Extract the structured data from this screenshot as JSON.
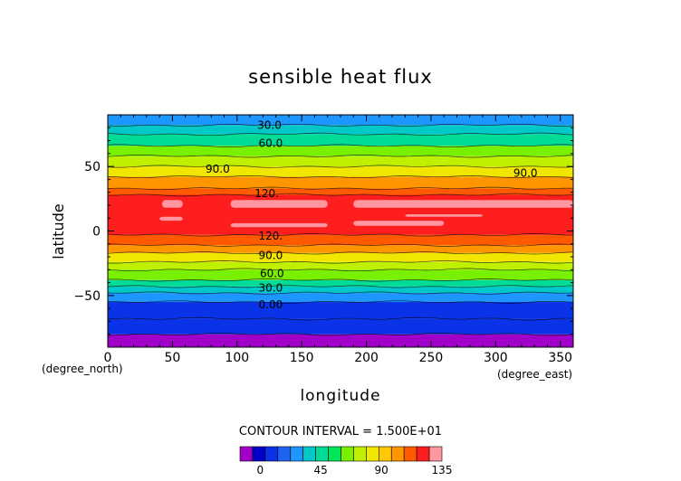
{
  "chart_data": {
    "type": "heatmap",
    "title": "sensible heat flux",
    "xlabel": "longitude",
    "ylabel": "latitude",
    "x_unit": "(degree_east)",
    "y_unit": "(degree_north)",
    "xlim": [
      0,
      360
    ],
    "ylim": [
      -90,
      90
    ],
    "x_ticks": [
      0,
      50,
      100,
      150,
      200,
      250,
      300,
      350
    ],
    "y_ticks": [
      -50,
      0,
      50
    ],
    "contour_interval_text": "CONTOUR INTERVAL = 1.500E+01",
    "contour_labels": [
      {
        "text": "30.0",
        "lon": 125,
        "lat": 82
      },
      {
        "text": "60.0",
        "lon": 126,
        "lat": 68
      },
      {
        "text": "90.0",
        "lon": 85,
        "lat": 48
      },
      {
        "text": "90.0",
        "lon": 323,
        "lat": 45
      },
      {
        "text": "120.",
        "lon": 123,
        "lat": 29
      },
      {
        "text": "120.",
        "lon": 126,
        "lat": -4
      },
      {
        "text": "90.0",
        "lon": 126,
        "lat": -19
      },
      {
        "text": "60.0",
        "lon": 127,
        "lat": -33
      },
      {
        "text": "30.0",
        "lon": 126,
        "lat": -44
      },
      {
        "text": "0.00",
        "lon": 126,
        "lat": -57
      }
    ],
    "bands": [
      {
        "lat_min": -90,
        "lat_max": -80,
        "value": -15
      },
      {
        "lat_min": -80,
        "lat_max": -68,
        "value": 0
      },
      {
        "lat_min": -68,
        "lat_max": -55,
        "value": 8
      },
      {
        "lat_min": -55,
        "lat_max": -48,
        "value": 20
      },
      {
        "lat_min": -48,
        "lat_max": -43,
        "value": 35
      },
      {
        "lat_min": -43,
        "lat_max": -38,
        "value": 48
      },
      {
        "lat_min": -38,
        "lat_max": -30,
        "value": 60
      },
      {
        "lat_min": -30,
        "lat_max": -24,
        "value": 70
      },
      {
        "lat_min": -24,
        "lat_max": -17,
        "value": 85
      },
      {
        "lat_min": -17,
        "lat_max": -11,
        "value": 100
      },
      {
        "lat_min": -11,
        "lat_max": -3,
        "value": 112
      },
      {
        "lat_min": -3,
        "lat_max": 28,
        "value": 125
      },
      {
        "lat_min": 28,
        "lat_max": 33,
        "value": 112
      },
      {
        "lat_min": 33,
        "lat_max": 42,
        "value": 100
      },
      {
        "lat_min": 42,
        "lat_max": 50,
        "value": 88
      },
      {
        "lat_min": 50,
        "lat_max": 58,
        "value": 72
      },
      {
        "lat_min": 58,
        "lat_max": 66,
        "value": 60
      },
      {
        "lat_min": 66,
        "lat_max": 75,
        "value": 47
      },
      {
        "lat_min": 75,
        "lat_max": 82,
        "value": 35
      },
      {
        "lat_min": 82,
        "lat_max": 90,
        "value": 22
      }
    ],
    "hot_spots": [
      {
        "lon_min": 42,
        "lon_max": 58,
        "lat_min": 18,
        "lat_max": 24
      },
      {
        "lon_min": 95,
        "lon_max": 170,
        "lat_min": 18,
        "lat_max": 24
      },
      {
        "lon_min": 190,
        "lon_max": 360,
        "lat_min": 18,
        "lat_max": 24
      },
      {
        "lon_min": 40,
        "lon_max": 58,
        "lat_min": 8,
        "lat_max": 11
      },
      {
        "lon_min": 95,
        "lon_max": 170,
        "lat_min": 3,
        "lat_max": 6
      },
      {
        "lon_min": 190,
        "lon_max": 260,
        "lat_min": 4,
        "lat_max": 8
      },
      {
        "lon_min": 230,
        "lon_max": 290,
        "lat_min": 11,
        "lat_max": 13
      }
    ],
    "colorbar": {
      "colors": [
        "#a000c8",
        "#0000c8",
        "#0a32e6",
        "#1e64f0",
        "#1e96ff",
        "#00c8c8",
        "#00dc96",
        "#00e65a",
        "#78f000",
        "#bef000",
        "#f0e600",
        "#ffc800",
        "#ff9600",
        "#ff5a00",
        "#ff1e1e",
        "#ff96a0"
      ],
      "tick_labels": [
        "0",
        "45",
        "90",
        "135"
      ],
      "tick_values": [
        0,
        45,
        90,
        135
      ],
      "range": [
        -15,
        135
      ]
    }
  }
}
